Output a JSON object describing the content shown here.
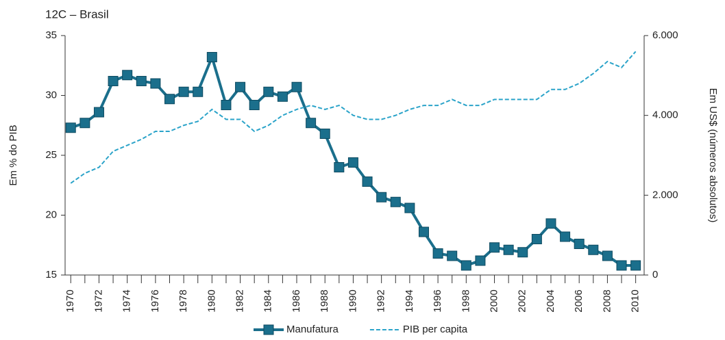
{
  "chart_data": {
    "type": "line",
    "title": "12C – Brasil",
    "ylabel": "Em % do PIB",
    "y2label": "Em US$ (números absolutos)",
    "x": [
      1970,
      1971,
      1972,
      1973,
      1974,
      1975,
      1976,
      1977,
      1978,
      1979,
      1980,
      1981,
      1982,
      1983,
      1984,
      1985,
      1986,
      1987,
      1988,
      1989,
      1990,
      1991,
      1992,
      1993,
      1994,
      1995,
      1996,
      1997,
      1998,
      1999,
      2000,
      2001,
      2002,
      2003,
      2004,
      2005,
      2006,
      2007,
      2008,
      2009,
      2010
    ],
    "xlim": [
      1969.6,
      2010.6
    ],
    "xticks": [
      1970,
      1972,
      1974,
      1976,
      1978,
      1980,
      1982,
      1984,
      1986,
      1988,
      1990,
      1992,
      1994,
      1996,
      1998,
      2000,
      2002,
      2004,
      2006,
      2008,
      2010
    ],
    "ylim": [
      15,
      35
    ],
    "yticks": [
      15,
      20,
      25,
      30,
      35
    ],
    "y2lim": [
      0,
      6000
    ],
    "y2ticks": [
      0,
      {
        "value": 2000,
        "label": "2.000"
      },
      {
        "value": 4000,
        "label": "4.000"
      },
      {
        "value": 6000,
        "label": "6.000"
      }
    ],
    "grid": false,
    "legend": "bottom",
    "series": [
      {
        "name": "Manufatura",
        "color": "#1b6f8c",
        "marker": "square",
        "values": [
          27.3,
          27.7,
          28.6,
          31.2,
          31.7,
          31.2,
          31.0,
          29.7,
          30.3,
          30.3,
          33.2,
          29.2,
          30.7,
          29.2,
          30.3,
          29.9,
          30.7,
          27.7,
          26.8,
          24.0,
          24.4,
          22.8,
          21.5,
          21.1,
          20.6,
          18.6,
          16.8,
          16.6,
          15.8,
          16.2,
          17.3,
          17.1,
          16.9,
          18.0,
          19.3,
          18.2,
          17.6,
          17.1,
          16.6,
          15.8,
          15.8
        ]
      },
      {
        "name": "PIB per capita",
        "color": "#2aa3c9",
        "dashed": true,
        "axis": "y2",
        "values": [
          2300,
          2550,
          2700,
          3100,
          3250,
          3400,
          3600,
          3600,
          3750,
          3850,
          4150,
          3900,
          3900,
          3600,
          3750,
          4000,
          4150,
          4250,
          4150,
          4250,
          4000,
          3900,
          3900,
          4000,
          4150,
          4250,
          4250,
          4400,
          4250,
          4250,
          4400,
          4400,
          4400,
          4400,
          4650,
          4650,
          4800,
          5050,
          5350,
          5200,
          5600
        ]
      }
    ]
  }
}
